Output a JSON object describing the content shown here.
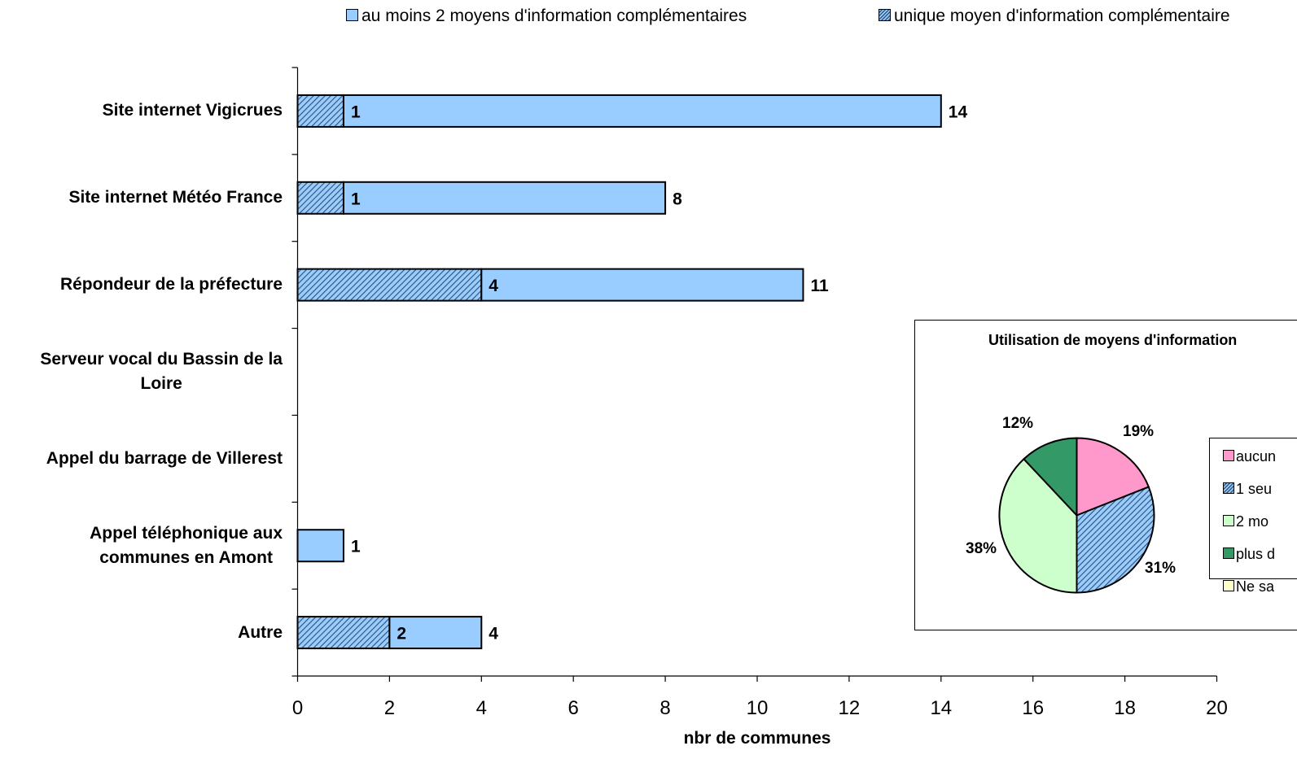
{
  "chart_data": [
    {
      "type": "bar",
      "orientation": "horizontal",
      "stacked": true,
      "categories": [
        "Site internet Vigicrues",
        "Site internet Météo France",
        "Répondeur de la préfecture",
        "Serveur vocal du Bassin de la Loire",
        "Appel du barrage de Villerest",
        "Appel téléphonique aux communes en Amont",
        "Autre"
      ],
      "category_lines": [
        [
          "Site internet Vigicrues"
        ],
        [
          "Site internet Météo France"
        ],
        [
          "Répondeur de la préfecture"
        ],
        [
          "Serveur vocal du Bassin de la",
          "Loire"
        ],
        [
          "Appel du barrage de Villerest"
        ],
        [
          "Appel téléphonique aux",
          "communes en Amont"
        ],
        [
          "Autre"
        ]
      ],
      "series": [
        {
          "name": "unique moyen d'information complémentaire",
          "values": [
            1,
            1,
            4,
            0,
            0,
            0,
            2
          ],
          "color": "#99ccff",
          "pattern": "hatch"
        },
        {
          "name": "au moins 2 moyens d'information complémentaires",
          "values": [
            13,
            7,
            7,
            0,
            0,
            1,
            2
          ],
          "color": "#99ccff",
          "pattern": "solid"
        }
      ],
      "segment_labels": [
        "1",
        "1",
        "4",
        "",
        "",
        "",
        "2"
      ],
      "total_labels": [
        "14",
        "8",
        "11",
        "",
        "",
        "1",
        "4"
      ],
      "xlabel": "nbr de communes",
      "xlim": [
        0,
        20
      ],
      "xticks": [
        "0",
        "2",
        "4",
        "6",
        "8",
        "10",
        "12",
        "14",
        "16",
        "18",
        "20"
      ],
      "legend_position": "top",
      "grid": false
    },
    {
      "type": "pie",
      "title": "Utilisation de moyens d'information",
      "values": [
        19,
        31,
        38,
        12,
        0
      ],
      "slice_labels": [
        "19%",
        "31%",
        "38%",
        "12%",
        ""
      ],
      "legend_entries": [
        "aucun",
        "1 seu",
        "2 mo",
        "plus d",
        "Ne sa"
      ],
      "colors": [
        "#ff99cc",
        "#99ccff",
        "#ccffcc",
        "#339966",
        "#ffffcc"
      ],
      "legend_position": "right"
    }
  ]
}
